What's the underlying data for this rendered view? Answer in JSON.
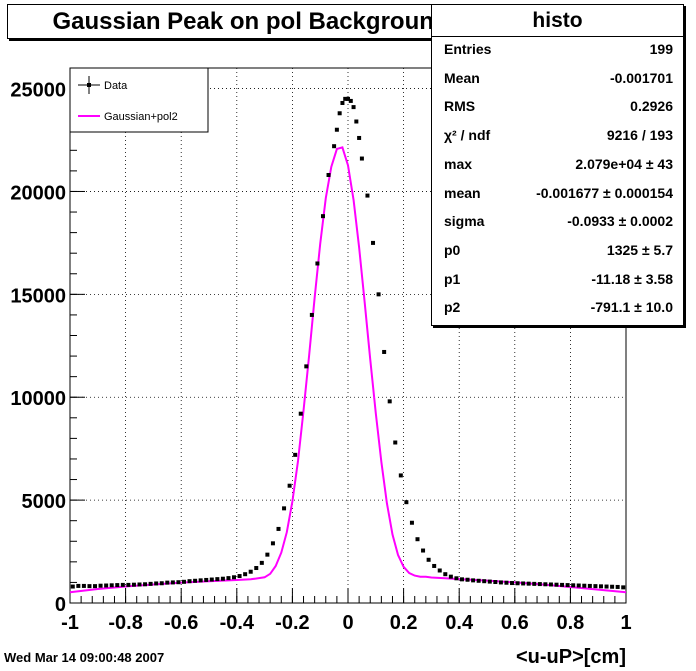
{
  "chart_data": {
    "type": "scatter",
    "title": "Gaussian Peak on pol Background",
    "xlabel": "<u-uP>[cm]",
    "ylabel": "",
    "xlim": [
      -1,
      1
    ],
    "ylim": [
      0,
      26000
    ],
    "grid": true,
    "x_ticks": [
      "-1",
      "-0.8",
      "-0.6",
      "-0.4",
      "-0.2",
      "0",
      "0.2",
      "0.4",
      "0.6",
      "0.8",
      "1"
    ],
    "y_ticks": [
      "0",
      "5000",
      "10000",
      "15000",
      "20000",
      "25000"
    ],
    "legend_position": "top-left",
    "series": [
      {
        "name": "Data",
        "kind": "points",
        "color": "#000000",
        "x": [
          -0.99,
          -0.97,
          -0.95,
          -0.93,
          -0.91,
          -0.89,
          -0.87,
          -0.85,
          -0.83,
          -0.81,
          -0.79,
          -0.77,
          -0.75,
          -0.73,
          -0.71,
          -0.69,
          -0.67,
          -0.65,
          -0.63,
          -0.61,
          -0.59,
          -0.57,
          -0.55,
          -0.53,
          -0.51,
          -0.49,
          -0.47,
          -0.45,
          -0.43,
          -0.41,
          -0.39,
          -0.37,
          -0.35,
          -0.33,
          -0.31,
          -0.29,
          -0.27,
          -0.25,
          -0.23,
          -0.21,
          -0.19,
          -0.17,
          -0.15,
          -0.13,
          -0.11,
          -0.09,
          -0.07,
          -0.05,
          -0.04,
          -0.03,
          -0.02,
          -0.01,
          0.0,
          0.01,
          0.02,
          0.03,
          0.04,
          0.05,
          0.07,
          0.09,
          0.11,
          0.13,
          0.15,
          0.17,
          0.19,
          0.21,
          0.23,
          0.25,
          0.27,
          0.29,
          0.31,
          0.33,
          0.35,
          0.37,
          0.39,
          0.41,
          0.43,
          0.45,
          0.47,
          0.49,
          0.51,
          0.53,
          0.55,
          0.57,
          0.59,
          0.61,
          0.63,
          0.65,
          0.67,
          0.69,
          0.71,
          0.73,
          0.75,
          0.77,
          0.79,
          0.81,
          0.83,
          0.85,
          0.87,
          0.89,
          0.91,
          0.93,
          0.95,
          0.97,
          0.99
        ],
        "y": [
          800,
          830,
          830,
          820,
          820,
          840,
          850,
          860,
          870,
          880,
          880,
          890,
          900,
          910,
          930,
          950,
          960,
          990,
          1000,
          1010,
          1030,
          1060,
          1080,
          1100,
          1120,
          1140,
          1160,
          1180,
          1210,
          1250,
          1310,
          1400,
          1520,
          1700,
          1950,
          2350,
          2900,
          3600,
          4600,
          5700,
          7200,
          9200,
          11500,
          14000,
          16500,
          18800,
          20800,
          22200,
          23000,
          23800,
          24300,
          24500,
          24500,
          24400,
          24100,
          23400,
          22600,
          21600,
          19800,
          17500,
          15000,
          12200,
          9800,
          7800,
          6200,
          4900,
          3900,
          3100,
          2550,
          2100,
          1800,
          1580,
          1400,
          1280,
          1200,
          1150,
          1130,
          1100,
          1080,
          1060,
          1040,
          1020,
          1000,
          985,
          970,
          960,
          950,
          940,
          930,
          920,
          910,
          900,
          890,
          880,
          870,
          860,
          850,
          840,
          830,
          820,
          810,
          800,
          790,
          780,
          760
        ]
      },
      {
        "name": "Gaussian+pol2",
        "kind": "line",
        "color": "#ff00ff",
        "x": [
          -1.0,
          -0.9,
          -0.8,
          -0.7,
          -0.6,
          -0.5,
          -0.4,
          -0.35,
          -0.3,
          -0.28,
          -0.26,
          -0.24,
          -0.22,
          -0.2,
          -0.18,
          -0.16,
          -0.14,
          -0.12,
          -0.1,
          -0.08,
          -0.06,
          -0.04,
          -0.02,
          0.0,
          0.02,
          0.04,
          0.06,
          0.08,
          0.1,
          0.12,
          0.14,
          0.16,
          0.18,
          0.2,
          0.22,
          0.24,
          0.26,
          0.28,
          0.3,
          0.35,
          0.4,
          0.5,
          0.6,
          0.7,
          0.8,
          0.9,
          1.0
        ],
        "y": [
          520,
          680,
          800,
          900,
          990,
          1060,
          1120,
          1150,
          1250,
          1420,
          1800,
          2450,
          3440,
          4940,
          6900,
          9340,
          12020,
          14820,
          17450,
          19680,
          21200,
          22070,
          22140,
          21270,
          19580,
          17290,
          14600,
          11860,
          9220,
          6840,
          4850,
          3330,
          2340,
          1760,
          1460,
          1330,
          1280,
          1275,
          1240,
          1200,
          1160,
          1090,
          1000,
          900,
          780,
          650,
          520
        ]
      }
    ],
    "stats": {
      "title": "histo",
      "rows": [
        {
          "label": "Entries",
          "value": "199"
        },
        {
          "label": "Mean",
          "value": "-0.001701"
        },
        {
          "label": "RMS",
          "value": "0.2926"
        },
        {
          "label": "χ² / ndf",
          "value": "9216 / 193"
        },
        {
          "label": "max",
          "value": "2.079e+04 ± 43"
        },
        {
          "label": "mean",
          "value": "-0.001677 ± 0.000154"
        },
        {
          "label": "sigma",
          "value": "-0.0933 ± 0.0002"
        },
        {
          "label": "p0",
          "value": "1325 ± 5.7"
        },
        {
          "label": "p1",
          "value": "-11.18 ± 3.58"
        },
        {
          "label": "p2",
          "value": "-791.1 ± 10.0"
        }
      ]
    },
    "date_label": "Wed Mar 14 09:00:48 2007"
  }
}
